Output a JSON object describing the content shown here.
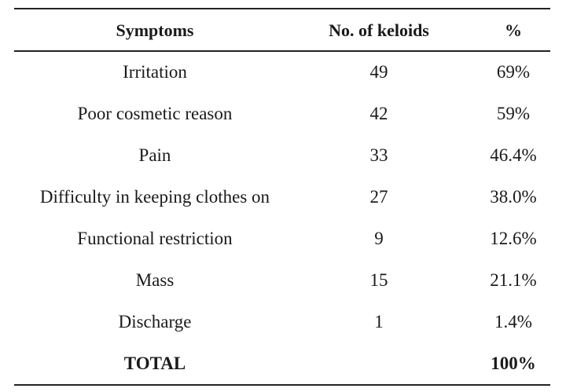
{
  "table": {
    "headers": [
      "Symptoms",
      "No. of keloids",
      "%"
    ],
    "rows": [
      [
        "Irritation",
        "49",
        "69%"
      ],
      [
        "Poor cosmetic reason",
        "42",
        "59%"
      ],
      [
        "Pain",
        "33",
        "46.4%"
      ],
      [
        "Difficulty in keeping clothes on",
        "27",
        "38.0%"
      ],
      [
        "Functional restriction",
        "9",
        "12.6%"
      ],
      [
        "Mass",
        "15",
        "21.1%"
      ],
      [
        "Discharge",
        "1",
        "1.4%"
      ]
    ],
    "total": [
      "TOTAL",
      "",
      "100%"
    ]
  }
}
